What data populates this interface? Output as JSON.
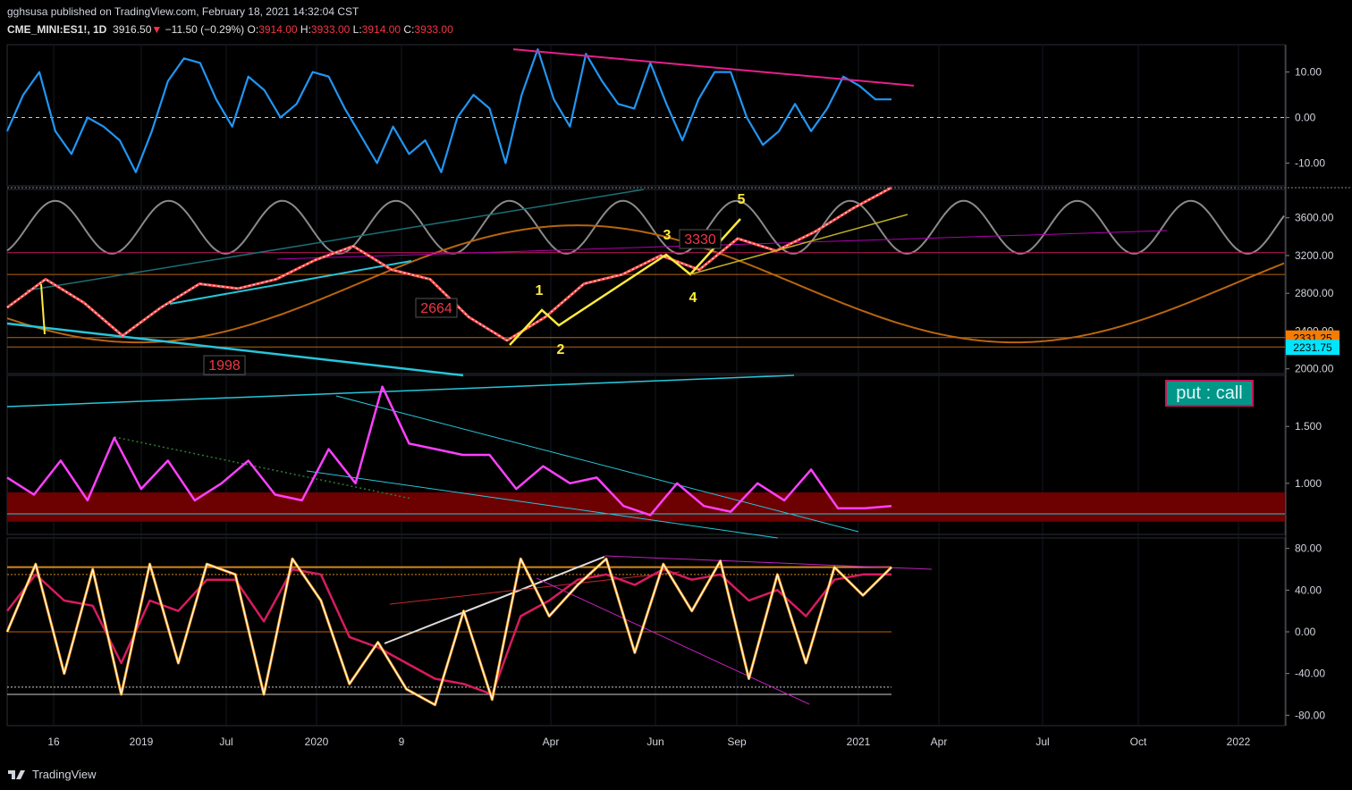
{
  "header": {
    "published": "gghsusa published on TradingView.com, February 18, 2021 14:32:04 CST",
    "symbol": "CME_MINI:ES1!, 1D",
    "last": "3916.50",
    "change": "−11.50 (−0.29%)",
    "o_label": "O:",
    "o": "3914.00",
    "h_label": "H:",
    "h": "3933.00",
    "l_label": "L:",
    "l": "3914.00",
    "c_label": "C:",
    "c": "3933.00",
    "down_arrow": "▼"
  },
  "footer": {
    "brand": "TradingView"
  },
  "put_call_label": "put : call",
  "colors": {
    "background": "#000000",
    "blue_line": "#2196f3",
    "magenta": "#e91e8c",
    "fuchsia": "#ff40ff",
    "orange_cycle": "#b8650f",
    "gray_cycle": "#8a8a8a",
    "cyan": "#26c6da",
    "yellow": "#ffeb3b",
    "price_label_orange": "#f57c00",
    "price_label_cyan": "#00e5ff"
  },
  "chart_data": [
    {
      "type": "line",
      "pane": "oscillator-top",
      "yticks": [
        "10.00",
        "0.00",
        "-10.00"
      ],
      "ylim": [
        -15,
        16
      ],
      "series": [
        {
          "name": "",
          "values": [
            -3,
            5,
            10,
            -3,
            -8,
            0,
            -2,
            -5,
            -12,
            -3,
            8,
            13,
            12,
            4,
            -2,
            9,
            6,
            0,
            3,
            10,
            9,
            2,
            -4,
            -10,
            -2,
            -8,
            -5,
            -12,
            0,
            5,
            2,
            -10,
            5,
            15,
            4,
            -2,
            14,
            8,
            3,
            2,
            12,
            3,
            -5,
            4,
            10,
            10,
            0,
            -6,
            -3,
            3,
            -3,
            2,
            9,
            7,
            4,
            4
          ]
        }
      ],
      "trendline_top": {
        "start": 15,
        "end": 7
      },
      "dashed_zero": 0
    },
    {
      "type": "line",
      "pane": "price",
      "yticks": [
        "3600.00",
        "3200.00",
        "2800.00",
        "2400.00",
        "2000.00"
      ],
      "ylim": [
        1950,
        3900
      ],
      "price_labels": [
        "2331.25",
        "2231.75"
      ],
      "annotations": [
        "1998",
        "2664",
        "3330",
        "1",
        "2",
        "3",
        "4",
        "5"
      ],
      "series": [
        {
          "name": "",
          "values": [
            2650,
            2950,
            2700,
            2350,
            2650,
            2900,
            2850,
            2950,
            3150,
            3300,
            3050,
            2950,
            2550,
            2300,
            2550,
            2900,
            3000,
            3200,
            3050,
            3380,
            3250,
            3450,
            3700,
            3920
          ]
        }
      ]
    },
    {
      "type": "line",
      "pane": "put-call",
      "yticks": [
        "1.500",
        "1.000"
      ],
      "ylim": [
        0.55,
        1.95
      ],
      "series": [
        {
          "name": "",
          "values": [
            1.05,
            0.9,
            1.2,
            0.85,
            1.4,
            0.95,
            1.2,
            0.85,
            1.0,
            1.2,
            0.9,
            0.85,
            1.3,
            1.0,
            1.85,
            1.35,
            1.3,
            1.25,
            1.25,
            0.95,
            1.15,
            1.0,
            1.05,
            0.8,
            0.72,
            1.0,
            0.8,
            0.75,
            1.0,
            0.85,
            1.12,
            0.78,
            0.78,
            0.8
          ]
        }
      ],
      "band": [
        0.78,
        0.92
      ]
    },
    {
      "type": "line",
      "pane": "stochastic",
      "yticks": [
        "80.00",
        "40.00",
        "0.00",
        "-40.00",
        "-80.00"
      ],
      "ylim": [
        -90,
        90
      ],
      "series": [
        {
          "name": "",
          "values": [
            0,
            65,
            -40,
            60,
            -60,
            65,
            -30,
            65,
            55,
            -60,
            70,
            30,
            -50,
            -10,
            -55,
            -70,
            20,
            -65,
            70,
            15,
            45,
            70,
            -20,
            65,
            20,
            68,
            -45,
            55,
            -30,
            62,
            35,
            62
          ]
        },
        {
          "name": "",
          "values": [
            20,
            55,
            30,
            25,
            -30,
            30,
            20,
            50,
            50,
            10,
            60,
            55,
            -5,
            -15,
            -30,
            -45,
            -50,
            -60,
            15,
            30,
            50,
            55,
            45,
            60,
            50,
            55,
            30,
            40,
            15,
            50,
            55,
            55
          ]
        }
      ]
    }
  ],
  "x_axis": [
    "16",
    "2019",
    "Jul",
    "2020",
    "9",
    "Apr",
    "Jun",
    "Sep",
    "2021",
    "Apr",
    "Jul",
    "Oct",
    "2022"
  ]
}
